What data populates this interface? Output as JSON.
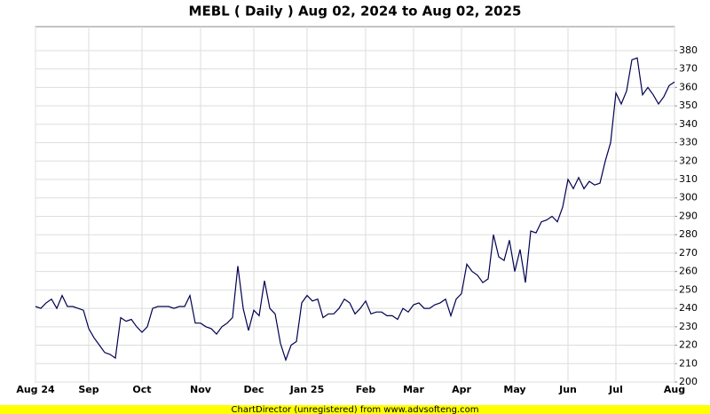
{
  "chart_data": {
    "type": "line",
    "title": "MEBL ( Daily ) Aug 02, 2024 to Aug 02, 2025",
    "footer": "ChartDirector (unregistered) from www.advsofteng.com",
    "categories": [
      "Aug 24",
      null,
      null,
      null,
      null,
      null,
      null,
      null,
      null,
      null,
      "Sep",
      null,
      null,
      null,
      null,
      null,
      null,
      null,
      null,
      null,
      "Oct",
      null,
      null,
      null,
      null,
      null,
      null,
      null,
      null,
      null,
      null,
      "Nov",
      null,
      null,
      null,
      null,
      null,
      null,
      null,
      null,
      null,
      "Dec",
      null,
      null,
      null,
      null,
      null,
      null,
      null,
      null,
      null,
      "Jan 25",
      null,
      null,
      null,
      null,
      null,
      null,
      null,
      null,
      null,
      null,
      "Feb",
      null,
      null,
      null,
      null,
      null,
      null,
      null,
      null,
      "Mar",
      null,
      null,
      null,
      null,
      null,
      null,
      null,
      null,
      "Apr",
      null,
      null,
      null,
      null,
      null,
      null,
      null,
      null,
      null,
      "May",
      null,
      null,
      null,
      null,
      null,
      null,
      null,
      null,
      null,
      "Jun",
      null,
      null,
      null,
      null,
      null,
      null,
      null,
      null,
      "Jul",
      null,
      null,
      null,
      null,
      null,
      null,
      null,
      null,
      null,
      null,
      "Aug"
    ],
    "series": [
      {
        "name": "MEBL",
        "color": "#000050",
        "values": [
          241,
          240,
          243,
          245,
          240,
          247,
          241,
          241,
          240,
          239,
          229,
          224,
          220,
          216,
          215,
          213,
          235,
          233,
          234,
          230,
          227,
          230,
          240,
          241,
          241,
          241,
          240,
          241,
          241,
          247,
          232,
          232,
          230,
          229,
          226,
          230,
          232,
          235,
          263,
          240,
          228,
          239,
          236,
          255,
          240,
          237,
          221,
          212,
          220,
          222,
          243,
          247,
          244,
          245,
          235,
          237,
          237,
          240,
          245,
          243,
          237,
          240,
          244,
          237,
          238,
          238,
          236,
          236,
          234,
          240,
          238,
          242,
          243,
          240,
          240,
          242,
          243,
          245,
          236,
          245,
          248,
          264,
          260,
          258,
          254,
          256,
          280,
          268,
          266,
          277,
          260,
          272,
          254,
          282,
          281,
          287,
          288,
          290,
          287,
          295,
          310,
          305,
          311,
          305,
          309,
          307,
          308,
          320,
          330,
          357,
          351,
          358,
          375,
          376,
          356,
          360,
          356,
          351,
          355,
          361,
          363
        ]
      }
    ],
    "ylim": [
      200,
      393
    ],
    "yticks": [
      200,
      210,
      220,
      230,
      240,
      250,
      260,
      270,
      280,
      290,
      300,
      310,
      320,
      330,
      340,
      350,
      360,
      370,
      380
    ],
    "grid": true
  }
}
